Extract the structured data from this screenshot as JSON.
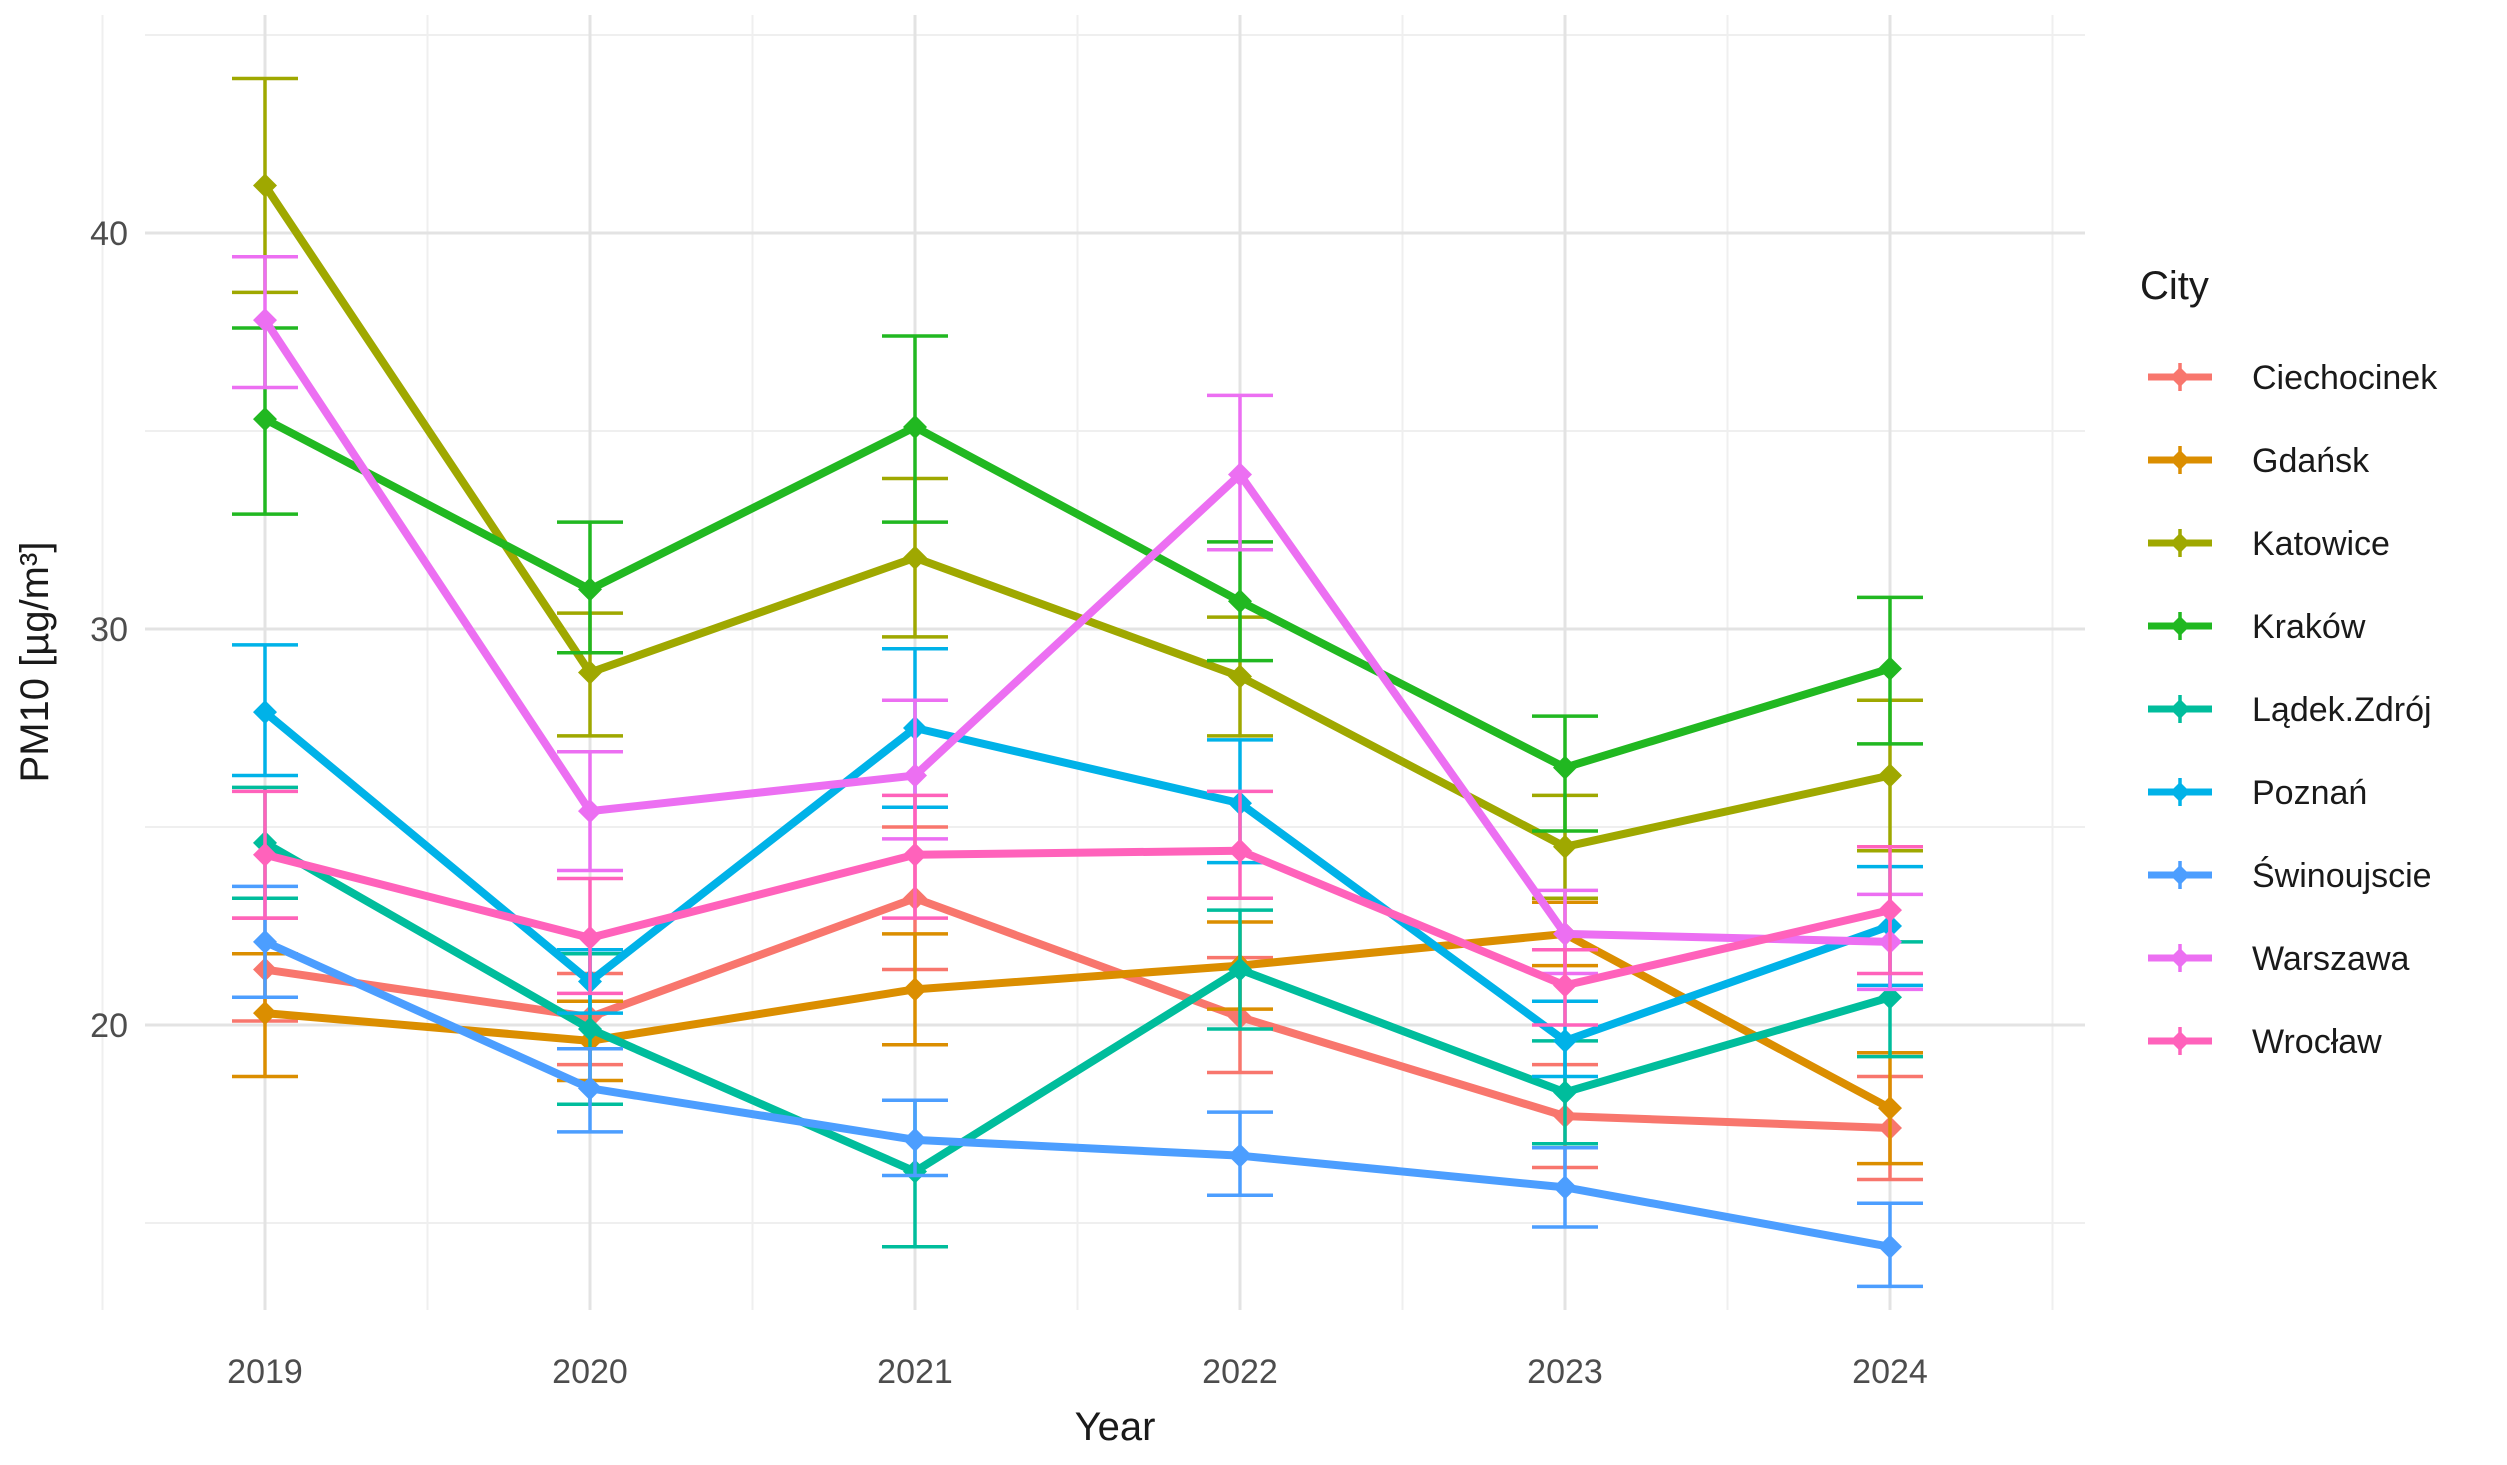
{
  "chart_data": {
    "type": "line",
    "title": "",
    "xlabel": "Year",
    "ylabel": "PM10 [µg/m³]",
    "legend_title": "City",
    "legend_position": "right",
    "grid": true,
    "marker": "diamond",
    "error_bars": true,
    "x": [
      2019,
      2020,
      2021,
      2022,
      2023,
      2024
    ],
    "x_tick_labels": [
      "2019",
      "2020",
      "2021",
      "2022",
      "2023",
      "2024"
    ],
    "y_major_ticks": [
      20,
      30,
      40
    ],
    "y_minor_ticks": [
      15,
      25,
      35,
      45
    ],
    "ylim": [
      12.7,
      45.5
    ],
    "grid_major_color": "#e3e3e3",
    "grid_minor_color": "#efefef",
    "tick_label_color": "#4d4d4d",
    "axis_title_color": "#1a1a1a",
    "series": [
      {
        "name": "Ciechocinek",
        "color": "#F8766D",
        "values": [
          21.4,
          20.2,
          23.2,
          20.2,
          17.7,
          17.4
        ],
        "ci_low": [
          20.1,
          19.0,
          21.4,
          18.8,
          16.4,
          16.1
        ],
        "ci_high": [
          22.7,
          21.3,
          25.0,
          21.7,
          19.0,
          18.7
        ]
      },
      {
        "name": "Gdańsk",
        "color": "#DB8E00",
        "values": [
          20.3,
          19.6,
          20.9,
          21.5,
          22.3,
          17.9
        ],
        "ci_low": [
          18.7,
          18.6,
          19.5,
          20.4,
          21.5,
          16.5
        ],
        "ci_high": [
          21.8,
          20.6,
          22.3,
          22.6,
          23.1,
          19.3
        ]
      },
      {
        "name": "Katowice",
        "color": "#9FA800",
        "values": [
          41.2,
          28.9,
          31.8,
          28.8,
          24.5,
          26.3
        ],
        "ci_low": [
          38.5,
          27.3,
          29.8,
          27.3,
          23.2,
          24.4
        ],
        "ci_high": [
          43.9,
          30.4,
          33.8,
          30.3,
          25.8,
          28.2
        ]
      },
      {
        "name": "Kraków",
        "color": "#21B821",
        "values": [
          35.3,
          31.0,
          35.1,
          30.7,
          26.5,
          29.0
        ],
        "ci_low": [
          32.9,
          29.4,
          32.7,
          29.2,
          24.9,
          27.1
        ],
        "ci_high": [
          37.6,
          32.7,
          37.4,
          32.2,
          27.8,
          30.8
        ]
      },
      {
        "name": "Lądek.Zdrój",
        "color": "#00BD9C",
        "values": [
          24.6,
          19.9,
          16.3,
          21.4,
          18.3,
          20.7
        ],
        "ci_low": [
          23.2,
          18.0,
          14.4,
          19.9,
          17.0,
          19.2
        ],
        "ci_high": [
          26.0,
          21.8,
          18.1,
          22.9,
          19.6,
          22.1
        ]
      },
      {
        "name": "Poznań",
        "color": "#00B2E8",
        "values": [
          27.9,
          21.1,
          27.5,
          25.6,
          19.6,
          22.5
        ],
        "ci_low": [
          26.3,
          20.3,
          25.5,
          24.1,
          18.7,
          21.0
        ],
        "ci_high": [
          29.6,
          21.9,
          29.5,
          27.2,
          20.6,
          24.0
        ]
      },
      {
        "name": "Świnoujscie",
        "color": "#4C9EFF",
        "values": [
          22.1,
          18.4,
          17.1,
          16.7,
          15.9,
          14.4
        ],
        "ci_low": [
          20.7,
          17.3,
          16.2,
          15.7,
          14.9,
          13.4
        ],
        "ci_high": [
          23.5,
          19.4,
          18.1,
          17.8,
          16.9,
          15.5
        ]
      },
      {
        "name": "Warszawa",
        "color": "#EC6FF2",
        "values": [
          37.8,
          25.4,
          26.3,
          33.9,
          22.3,
          22.1
        ],
        "ci_low": [
          36.1,
          23.9,
          24.7,
          32.0,
          21.3,
          20.9
        ],
        "ci_high": [
          39.4,
          26.9,
          28.2,
          35.9,
          23.4,
          23.3
        ]
      },
      {
        "name": "Wrocław",
        "color": "#FF62BB",
        "values": [
          24.3,
          22.2,
          24.3,
          24.4,
          21.0,
          22.9
        ],
        "ci_low": [
          22.7,
          20.8,
          22.7,
          23.2,
          20.0,
          21.3
        ],
        "ci_high": [
          25.9,
          23.7,
          25.8,
          25.9,
          21.9,
          24.5
        ]
      }
    ]
  }
}
